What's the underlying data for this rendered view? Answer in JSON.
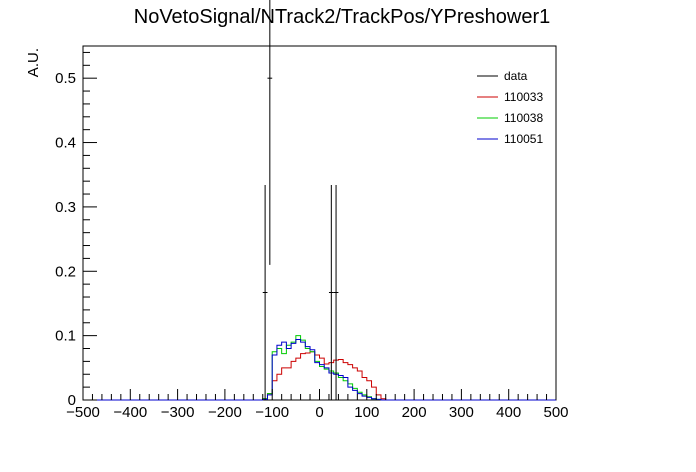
{
  "chart_data": {
    "type": "line",
    "title": "NoVetoSignal/NTrack2/TrackPos/YPreshower1",
    "xlabel": "",
    "ylabel": "A.U.",
    "xlim": [
      -500,
      500
    ],
    "ylim": [
      0,
      0.55
    ],
    "x_ticks": [
      -500,
      -400,
      -300,
      -200,
      -100,
      0,
      100,
      200,
      300,
      400,
      500
    ],
    "y_ticks": [
      0,
      0.1,
      0.2,
      0.3,
      0.4,
      0.5
    ],
    "y_tick_labels": [
      "0",
      "0.1",
      "0.2",
      "0.3",
      "0.4",
      "0.5"
    ],
    "legend_position": "top-right",
    "grid": false,
    "bin_width": 10,
    "series": [
      {
        "name": "data",
        "color": "#000000",
        "style": "errorbar",
        "points": [
          {
            "x": -115,
            "y": 0.167,
            "err": 0.167
          },
          {
            "x": -105,
            "y": 0.5,
            "err": 0.29
          },
          {
            "x": 25,
            "y": 0.167,
            "err": 0.167
          },
          {
            "x": 35,
            "y": 0.167,
            "err": 0.167
          }
        ]
      },
      {
        "name": "110033",
        "color": "#cc0000",
        "style": "hist",
        "x_start": -120,
        "values": [
          0.002,
          0.01,
          0.03,
          0.04,
          0.05,
          0.05,
          0.06,
          0.065,
          0.072,
          0.073,
          0.075,
          0.07,
          0.065,
          0.056,
          0.058,
          0.062,
          0.063,
          0.058,
          0.055,
          0.05,
          0.045,
          0.035,
          0.03,
          0.02,
          0.008,
          0.002
        ]
      },
      {
        "name": "110038",
        "color": "#00cc00",
        "style": "hist",
        "x_start": -120,
        "values": [
          0.002,
          0.01,
          0.075,
          0.08,
          0.072,
          0.085,
          0.09,
          0.1,
          0.093,
          0.08,
          0.075,
          0.06,
          0.052,
          0.048,
          0.045,
          0.042,
          0.035,
          0.03,
          0.025,
          0.018,
          0.012,
          0.008,
          0.005,
          0.002,
          0.001,
          0.0
        ]
      },
      {
        "name": "110051",
        "color": "#0000cc",
        "style": "hist",
        "x_start": -120,
        "values": [
          0.001,
          0.008,
          0.07,
          0.085,
          0.09,
          0.08,
          0.088,
          0.094,
          0.09,
          0.083,
          0.078,
          0.058,
          0.055,
          0.05,
          0.042,
          0.04,
          0.038,
          0.035,
          0.02,
          0.015,
          0.01,
          0.006,
          0.004,
          0.002,
          0.001,
          0.0
        ]
      }
    ]
  }
}
